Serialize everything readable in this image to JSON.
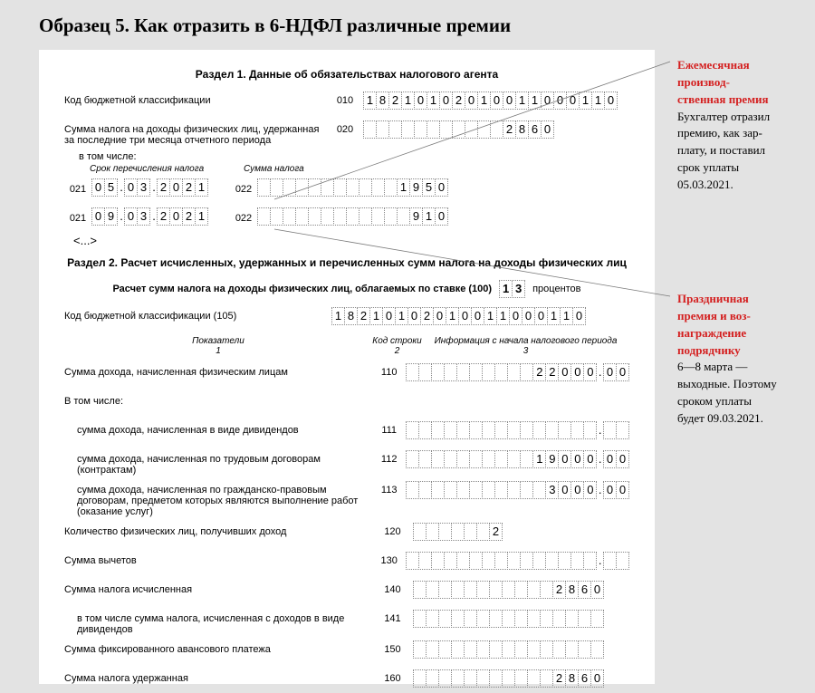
{
  "title": "Образец 5. Как отразить в 6-НДФЛ различные премии",
  "section1": {
    "title": "Раздел 1. Данные об обязательствах налогового агента",
    "kbk": {
      "label": "Код бюджетной классификации",
      "code": "010",
      "value": "18210102010011000110"
    },
    "tax_sum": {
      "label": "Сумма налога на доходы физических лиц, удержанная за последние три месяца отчетного периода",
      "code": "020",
      "value": "2860",
      "width": 15
    },
    "including": "в том числе:",
    "sub_date": "Срок перечисления налога",
    "sub_tax": "Сумма налога",
    "rows": [
      {
        "code1": "021",
        "date": "05.03.2021",
        "code2": "022",
        "amount": "1950",
        "width": 15
      },
      {
        "code1": "021",
        "date": "09.03.2021",
        "code2": "022",
        "amount": "910",
        "width": 15
      }
    ],
    "ellipsis": "<...>"
  },
  "section2": {
    "title": "Раздел 2. Расчет исчисленных, удержанных и перечисленных сумм налога на доходы физических лиц",
    "rate_label": "Расчет сумм налога на доходы физических лиц, облагаемых по ставке (100)",
    "rate_value": "13",
    "rate_after": "процентов",
    "kbk": {
      "label": "Код бюджетной классификации  (105)",
      "value": "18210102010011000110"
    },
    "headers": {
      "c1": "Показатели",
      "c1n": "1",
      "c2": "Код строки",
      "c2n": "2",
      "c3": "Информация с начала налогового периода",
      "c3n": "3"
    },
    "rows": [
      {
        "label": "Сумма дохода, начисленная физическим лицам",
        "code": "110",
        "int": "22000",
        "dec": "00",
        "iw": 15,
        "dw": 2
      },
      {
        "label": "В том числе:",
        "code": "",
        "iw": 0
      },
      {
        "label": "сумма дохода, начисленная в виде дивидендов",
        "code": "111",
        "int": "",
        "dec": "",
        "iw": 15,
        "dw": 2,
        "indent": true
      },
      {
        "label": "сумма дохода, начисленная по трудовым договорам (контрактам)",
        "code": "112",
        "int": "19000",
        "dec": "00",
        "iw": 15,
        "dw": 2,
        "indent": true
      },
      {
        "label": "сумма дохода, начисленная по гражданско-правовым договорам, предметом которых являются выполнение работ (оказание услуг)",
        "code": "113",
        "int": "3000",
        "dec": "00",
        "iw": 15,
        "dw": 2,
        "indent": true
      },
      {
        "label": "Количество физических лиц, получивших доход",
        "code": "120",
        "int": "2",
        "iw": 7
      },
      {
        "label": "Сумма вычетов",
        "code": "130",
        "int": "",
        "dec": "",
        "iw": 15,
        "dw": 2
      },
      {
        "label": "Сумма налога исчисленная",
        "code": "140",
        "int": "2860",
        "iw": 15
      },
      {
        "label": "в том числе сумма налога, исчисленная с доходов в виде дивидендов",
        "code": "141",
        "int": "",
        "iw": 15,
        "indent": true
      },
      {
        "label": "Сумма фиксированного авансового платежа",
        "code": "150",
        "int": "",
        "iw": 15
      },
      {
        "label": "Сумма налога удержанная",
        "code": "160",
        "int": "2860",
        "iw": 15
      }
    ]
  },
  "annot1": {
    "red": [
      "Ежемесячная",
      "производ-",
      "ственная премия"
    ],
    "text": [
      "Бухгалтер отразил",
      "премию, как зар-",
      "плату, и поставил",
      "срок уплаты",
      "05.03.2021."
    ]
  },
  "annot2": {
    "red": [
      "Праздничная",
      "премия и воз-",
      "награждение",
      "подрядчику"
    ],
    "text": [
      "6—8 марта —",
      "выходные. Поэтому",
      "сроком уплаты",
      "будет 09.03.2021."
    ]
  },
  "colors": {
    "red": "#d41f1f",
    "line": "#7a7a7a"
  }
}
